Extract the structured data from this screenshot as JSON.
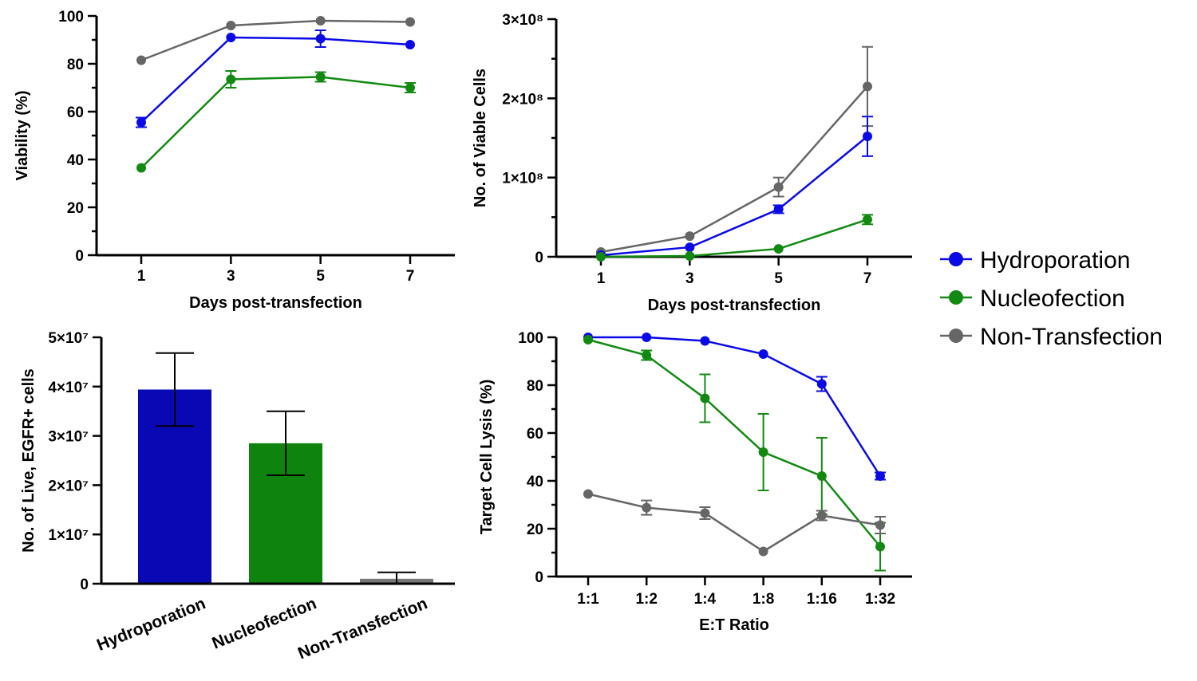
{
  "colors": {
    "Hydroporation": "#0a0ae6",
    "Nucleofection": "#128a12",
    "Non-Transfection": "#666666",
    "bar_Hydroporation": "#0808b4",
    "bar_Nucleofection": "#0e830e",
    "bar_Non-Transfection": "#777777"
  },
  "legend": {
    "position": "right-center",
    "entries": [
      "Hydroporation",
      "Nucleofection",
      "Non-Transfection"
    ]
  },
  "chart_data": [
    {
      "id": "viability",
      "type": "line",
      "xlabel": "Days post-transfection",
      "ylabel": "Viability (%)",
      "x": [
        1,
        3,
        5,
        7
      ],
      "xtick_labels": [
        "1",
        "3",
        "5",
        "7"
      ],
      "ylim": [
        0,
        100
      ],
      "ytick_labels": [
        "0",
        "20",
        "40",
        "60",
        "80",
        "100"
      ],
      "series": [
        {
          "name": "Non-Transfection",
          "values": [
            81.5,
            96,
            98,
            97.5
          ],
          "errors": [
            0,
            0,
            0,
            0
          ]
        },
        {
          "name": "Hydroporation",
          "values": [
            55.5,
            91,
            90.5,
            88
          ],
          "errors": [
            2,
            0,
            3.5,
            0
          ]
        },
        {
          "name": "Nucleofection",
          "values": [
            36.5,
            73.5,
            74.5,
            70
          ],
          "errors": [
            0,
            3.5,
            2,
            2
          ]
        }
      ]
    },
    {
      "id": "viable-cells",
      "type": "line",
      "xlabel": "Days post-transfection",
      "ylabel": "No. of Viable Cells",
      "x": [
        1,
        3,
        5,
        7
      ],
      "xtick_labels": [
        "1",
        "3",
        "5",
        "7"
      ],
      "ylim": [
        0,
        300000000
      ],
      "ytick_labels": [
        "0",
        "1×10⁸",
        "2×10⁸",
        "3×10⁸"
      ],
      "series": [
        {
          "name": "Non-Transfection",
          "values": [
            6000000,
            26000000,
            88000000,
            215000000
          ],
          "errors": [
            0,
            0,
            12000000,
            50000000
          ]
        },
        {
          "name": "Hydroporation",
          "values": [
            2000000,
            12000000,
            60000000,
            152000000
          ],
          "errors": [
            0,
            0,
            5000000,
            25000000
          ]
        },
        {
          "name": "Nucleofection",
          "values": [
            0,
            1000000,
            10000000,
            47000000
          ],
          "errors": [
            0,
            0,
            0,
            6000000
          ]
        }
      ]
    },
    {
      "id": "egfr-cells",
      "type": "bar",
      "ylabel": "No. of Live, EGFR+ cells",
      "categories": [
        "Hydroporation",
        "Nucleofection",
        "Non-Transfection"
      ],
      "values": [
        39400000,
        28500000,
        1000000
      ],
      "errors": [
        7400000,
        6500000,
        1300000
      ],
      "ylim": [
        0,
        50000000
      ],
      "ytick_labels": [
        "0",
        "1×10⁷",
        "2×10⁷",
        "3×10⁷",
        "4×10⁷",
        "5×10⁷"
      ]
    },
    {
      "id": "lysis",
      "type": "line",
      "xlabel": "E:T Ratio",
      "ylabel": "Target Cell Lysis (%)",
      "categories": [
        "1:1",
        "1:2",
        "1:4",
        "1:8",
        "1:16",
        "1:32"
      ],
      "ylim": [
        0,
        100
      ],
      "ytick_labels": [
        "0",
        "20",
        "40",
        "60",
        "80",
        "100"
      ],
      "series": [
        {
          "name": "Hydroporation",
          "values": [
            100,
            100,
            98.5,
            93,
            80.5,
            42
          ],
          "errors": [
            0,
            0,
            0,
            0,
            3,
            1.5
          ]
        },
        {
          "name": "Nucleofection",
          "values": [
            99,
            92.5,
            74.5,
            52,
            42,
            12.5
          ],
          "errors": [
            0,
            2,
            10,
            16,
            16,
            10
          ]
        },
        {
          "name": "Non-Transfection",
          "values": [
            34.5,
            28.8,
            26.5,
            10.5,
            25.5,
            21.5
          ],
          "errors": [
            0,
            3,
            2.5,
            0,
            2,
            3.5
          ]
        }
      ]
    }
  ]
}
